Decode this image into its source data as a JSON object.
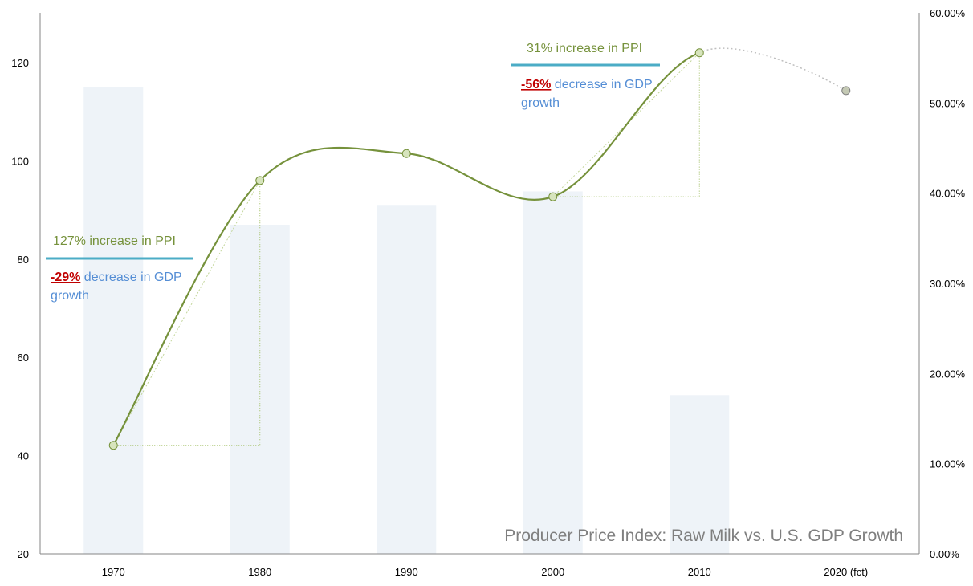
{
  "chart_data": {
    "type": "bar+line",
    "title": "Producer Price Index: Raw Milk vs. U.S. GDP Growth",
    "categories": [
      "1970",
      "1980",
      "1990",
      "2000",
      "2010",
      "2020 (fct)"
    ],
    "series": [
      {
        "name": "U.S. GDP Growth",
        "type": "bar",
        "axis": "right",
        "values": [
          51.8,
          36.5,
          38.7,
          40.2,
          17.6,
          null
        ],
        "color": "#eef3f8"
      },
      {
        "name": "PPI Raw Milk",
        "type": "line",
        "axis": "left",
        "values": [
          42.1,
          96.0,
          101.5,
          92.7,
          122.0,
          114.3
        ],
        "color": "#76923c",
        "forecast_from": "2010"
      }
    ],
    "left_axis": {
      "ylim": [
        20,
        130
      ],
      "ticks": [
        "20",
        "40",
        "60",
        "80",
        "100",
        "120"
      ]
    },
    "right_axis": {
      "ylim": [
        0,
        60
      ],
      "ticks": [
        "0.00%",
        "10.00%",
        "20.00%",
        "30.00%",
        "40.00%",
        "50.00%",
        "60.00%"
      ]
    },
    "grid": false,
    "annotations": [
      {
        "increase": "127% increase in PPI",
        "pct": "-29%",
        "decrease": " decrease in GDP",
        "decrease2": "growth"
      },
      {
        "increase": "31% increase in PPI",
        "pct": "-56%",
        "decrease": " decrease in GDP",
        "decrease2": "growth"
      }
    ]
  }
}
